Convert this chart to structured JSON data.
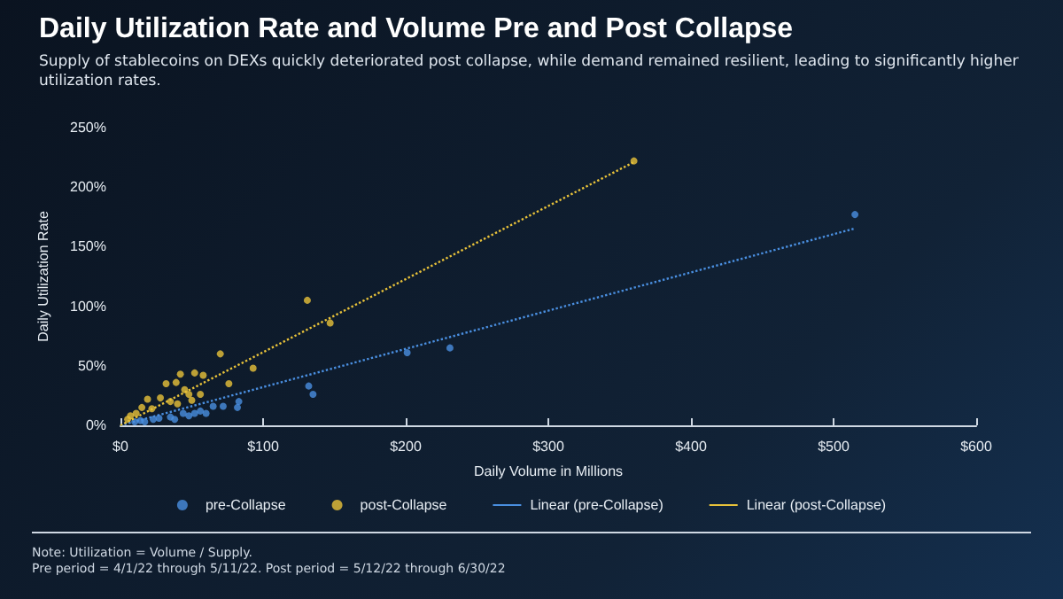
{
  "chart_data": {
    "type": "scatter",
    "title": "Daily Utilization Rate and Volume Pre and Post Collapse",
    "subtitle": "Supply of stablecoins on DEXs quickly deteriorated post collapse, while demand remained resilient, leading to significantly higher utilization rates.",
    "xlabel": "Daily Volume in Millions",
    "ylabel": "Daily Utilization Rate",
    "annotations": [
      "Note: Utilization = Volume / Supply.",
      "Pre period = 4/1/22 through 5/11/22. Post period = 5/12/22 through 6/30/22"
    ],
    "series": [
      {
        "name": "pre-Collapse",
        "color": "#4a8fe0",
        "x": [
          515,
          231,
          201,
          132,
          135,
          83,
          82,
          72,
          65,
          60,
          52,
          48,
          44,
          38,
          23,
          17,
          14,
          10,
          27,
          35,
          56
        ],
        "values": [
          177,
          65,
          61,
          33,
          26,
          20,
          15,
          16,
          16,
          10,
          10,
          8,
          10,
          5,
          5,
          3,
          4,
          3,
          6,
          7,
          12
        ]
      },
      {
        "name": "post-Collapse",
        "color": "#e8c23a",
        "x": [
          360,
          131,
          147,
          70,
          93,
          52,
          58,
          42,
          39,
          32,
          76,
          48,
          56,
          50,
          28,
          19,
          40,
          15,
          11,
          7,
          5,
          35,
          22,
          45
        ],
        "values": [
          222,
          105,
          86,
          60,
          48,
          44,
          42,
          43,
          36,
          35,
          35,
          26,
          26,
          21,
          23,
          22,
          18,
          15,
          10,
          8,
          5,
          20,
          14,
          30
        ]
      },
      {
        "name": "Linear (pre-Collapse)",
        "type": "line",
        "color": "#4a8fe0",
        "line_style": "dotted",
        "marker": "none",
        "x": [
          0,
          514
        ],
        "values": [
          0,
          165
        ]
      },
      {
        "name": "Linear (post-Collapse)",
        "type": "line",
        "color": "#e8c23a",
        "line_style": "dotted",
        "marker": "none",
        "x": [
          0,
          360
        ],
        "values": [
          0,
          221
        ]
      }
    ],
    "marker": "circle",
    "xlim": [
      0,
      600
    ],
    "xticks": [
      {
        "value": 0,
        "label": "$0"
      },
      {
        "value": 100,
        "label": "$100"
      },
      {
        "value": 200,
        "label": "$200"
      },
      {
        "value": 300,
        "label": "$300"
      },
      {
        "value": 400,
        "label": "$400"
      },
      {
        "value": 500,
        "label": "$500"
      },
      {
        "value": 600,
        "label": "$600"
      }
    ],
    "ylim": [
      0,
      250
    ],
    "yticks": [
      {
        "value": 0,
        "label": "0%"
      },
      {
        "value": 50,
        "label": "50%"
      },
      {
        "value": 100,
        "label": "100%"
      },
      {
        "value": 150,
        "label": "150%"
      },
      {
        "value": 200,
        "label": "200%"
      },
      {
        "value": 250,
        "label": "250%"
      }
    ],
    "grid": false,
    "legend": "bottom"
  }
}
